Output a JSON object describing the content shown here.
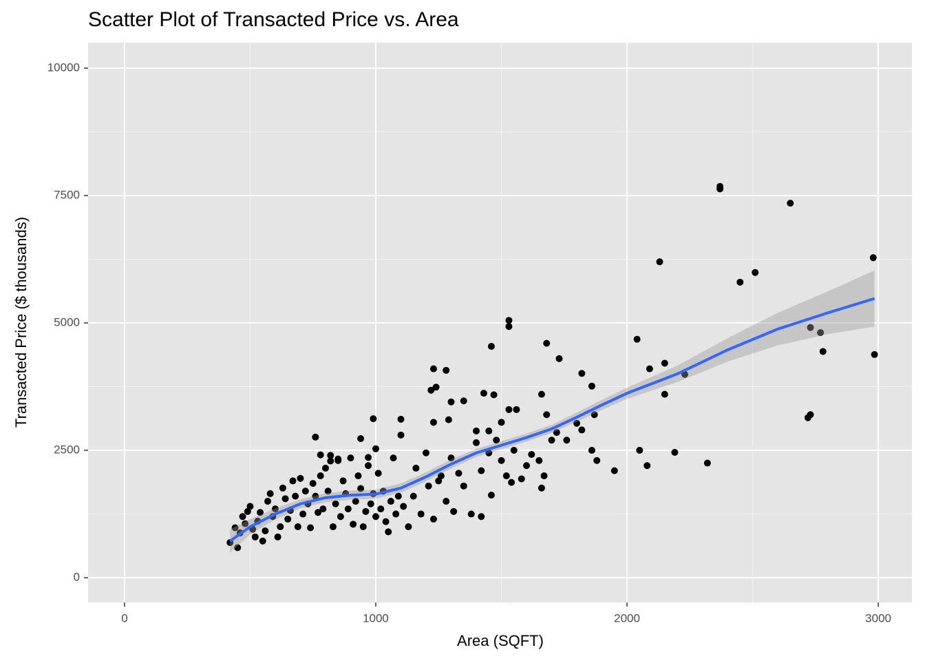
{
  "chart_data": {
    "type": "scatter",
    "title": "Scatter Plot of Transacted Price vs. Area",
    "x_label": "Area (SQFT)",
    "y_label": "Transacted Price ($ thousands)",
    "xlim": [
      -145,
      3134
    ],
    "ylim": [
      -486,
      10500
    ],
    "xticks": [
      0,
      1000,
      2000,
      3000
    ],
    "yticks": [
      0,
      2500,
      5000,
      7500,
      10000
    ],
    "x_minor_ticks": [
      500,
      1500,
      2500
    ],
    "y_minor_ticks": [
      1250,
      3750,
      6250,
      8750
    ],
    "grid": true,
    "color": "#000000",
    "x": [
      2370,
      2370,
      2650,
      2980,
      2130,
      2510,
      2450,
      1530,
      1530,
      2730,
      2770,
      2040,
      1680,
      1460,
      2780,
      2985,
      1730,
      2150,
      1230,
      2090,
      1280,
      1820,
      2230,
      1860,
      1240,
      1220,
      1660,
      2150,
      1470,
      1430,
      1300,
      1350,
      1530,
      1560,
      1870,
      2730,
      2720,
      1680,
      990,
      1100,
      1230,
      1500,
      1290,
      1800,
      1450,
      1400,
      1620,
      1860,
      2050,
      2190,
      1880,
      1950,
      2320,
      2080,
      1660,
      1580,
      1670,
      1520,
      1540,
      1460,
      1420,
      760,
      940,
      1000,
      970,
      850,
      780,
      820,
      420,
      440,
      450,
      460,
      470,
      480,
      490,
      500,
      510,
      520,
      530,
      540,
      550,
      560,
      570,
      580,
      590,
      600,
      610,
      620,
      630,
      640,
      650,
      660,
      670,
      680,
      690,
      700,
      710,
      720,
      730,
      740,
      750,
      760,
      770,
      780,
      790,
      800,
      810,
      820,
      830,
      840,
      850,
      860,
      870,
      880,
      890,
      900,
      910,
      920,
      930,
      940,
      950,
      960,
      970,
      980,
      990,
      1000,
      1010,
      1020,
      1030,
      1040,
      1050,
      1060,
      1070,
      1080,
      1090,
      1100,
      1110,
      1130,
      1150,
      1160,
      1180,
      1200,
      1210,
      1230,
      1250,
      1260,
      1280,
      1300,
      1310,
      1330,
      1350,
      1380,
      1400,
      1420,
      1450,
      1480,
      1500,
      1550,
      1600,
      1650,
      1700,
      1720,
      1760,
      1820
    ],
    "y": [
      7680,
      7630,
      7350,
      6280,
      6200,
      5990,
      5800,
      5050,
      4930,
      4910,
      4810,
      4680,
      4600,
      4540,
      4440,
      4380,
      4300,
      4210,
      4100,
      4100,
      4070,
      4010,
      3990,
      3760,
      3740,
      3680,
      3600,
      3600,
      3590,
      3620,
      3450,
      3470,
      3300,
      3300,
      3200,
      3200,
      3140,
      3200,
      3120,
      3110,
      3050,
      3050,
      3100,
      3030,
      2880,
      2880,
      2420,
      2500,
      2500,
      2460,
      2300,
      2100,
      2250,
      2200,
      1760,
      1940,
      2000,
      2000,
      1870,
      1620,
      1200,
      2760,
      2730,
      2530,
      2360,
      2330,
      2410,
      2290,
      690,
      980,
      590,
      880,
      1200,
      1060,
      1300,
      1400,
      950,
      800,
      1110,
      1280,
      720,
      920,
      1500,
      1650,
      1200,
      1350,
      800,
      1000,
      1760,
      1550,
      1150,
      1320,
      1900,
      1600,
      1000,
      1950,
      1250,
      1700,
      1450,
      980,
      1850,
      1600,
      1280,
      2000,
      1350,
      2150,
      1700,
      2400,
      1000,
      1450,
      2300,
      1200,
      1900,
      1650,
      1350,
      2350,
      1050,
      1500,
      2000,
      1750,
      1000,
      1300,
      2200,
      1450,
      1650,
      1200,
      2050,
      1350,
      1700,
      1100,
      900,
      1500,
      2350,
      1250,
      1600,
      2800,
      1400,
      1000,
      1600,
      2150,
      1250,
      2450,
      1800,
      1150,
      1900,
      2000,
      1500,
      2350,
      1300,
      2050,
      1800,
      1250,
      2650,
      2100,
      2450,
      2700,
      2300,
      2500,
      2200,
      2300,
      2700,
      2850,
      2700,
      2900
    ],
    "smooth": {
      "color": "#3366ff",
      "band_color": "#999999",
      "x": [
        420,
        500,
        600,
        700,
        800,
        900,
        1000,
        1100,
        1200,
        1300,
        1400,
        1500,
        1600,
        1700,
        1800,
        1900,
        2000,
        2200,
        2400,
        2600,
        2800,
        2985
      ],
      "y": [
        720,
        1000,
        1250,
        1450,
        1570,
        1620,
        1640,
        1760,
        1980,
        2230,
        2450,
        2600,
        2750,
        2920,
        3150,
        3390,
        3620,
        4000,
        4470,
        4880,
        5200,
        5480
      ],
      "lower": [
        490,
        850,
        1140,
        1360,
        1480,
        1530,
        1550,
        1670,
        1890,
        2140,
        2370,
        2520,
        2670,
        2840,
        3060,
        3290,
        3510,
        3840,
        4240,
        4560,
        4780,
        4930
      ],
      "upper": [
        950,
        1150,
        1360,
        1540,
        1660,
        1710,
        1730,
        1850,
        2070,
        2320,
        2530,
        2680,
        2830,
        3000,
        3240,
        3490,
        3730,
        4160,
        4700,
        5200,
        5620,
        6030
      ]
    }
  }
}
